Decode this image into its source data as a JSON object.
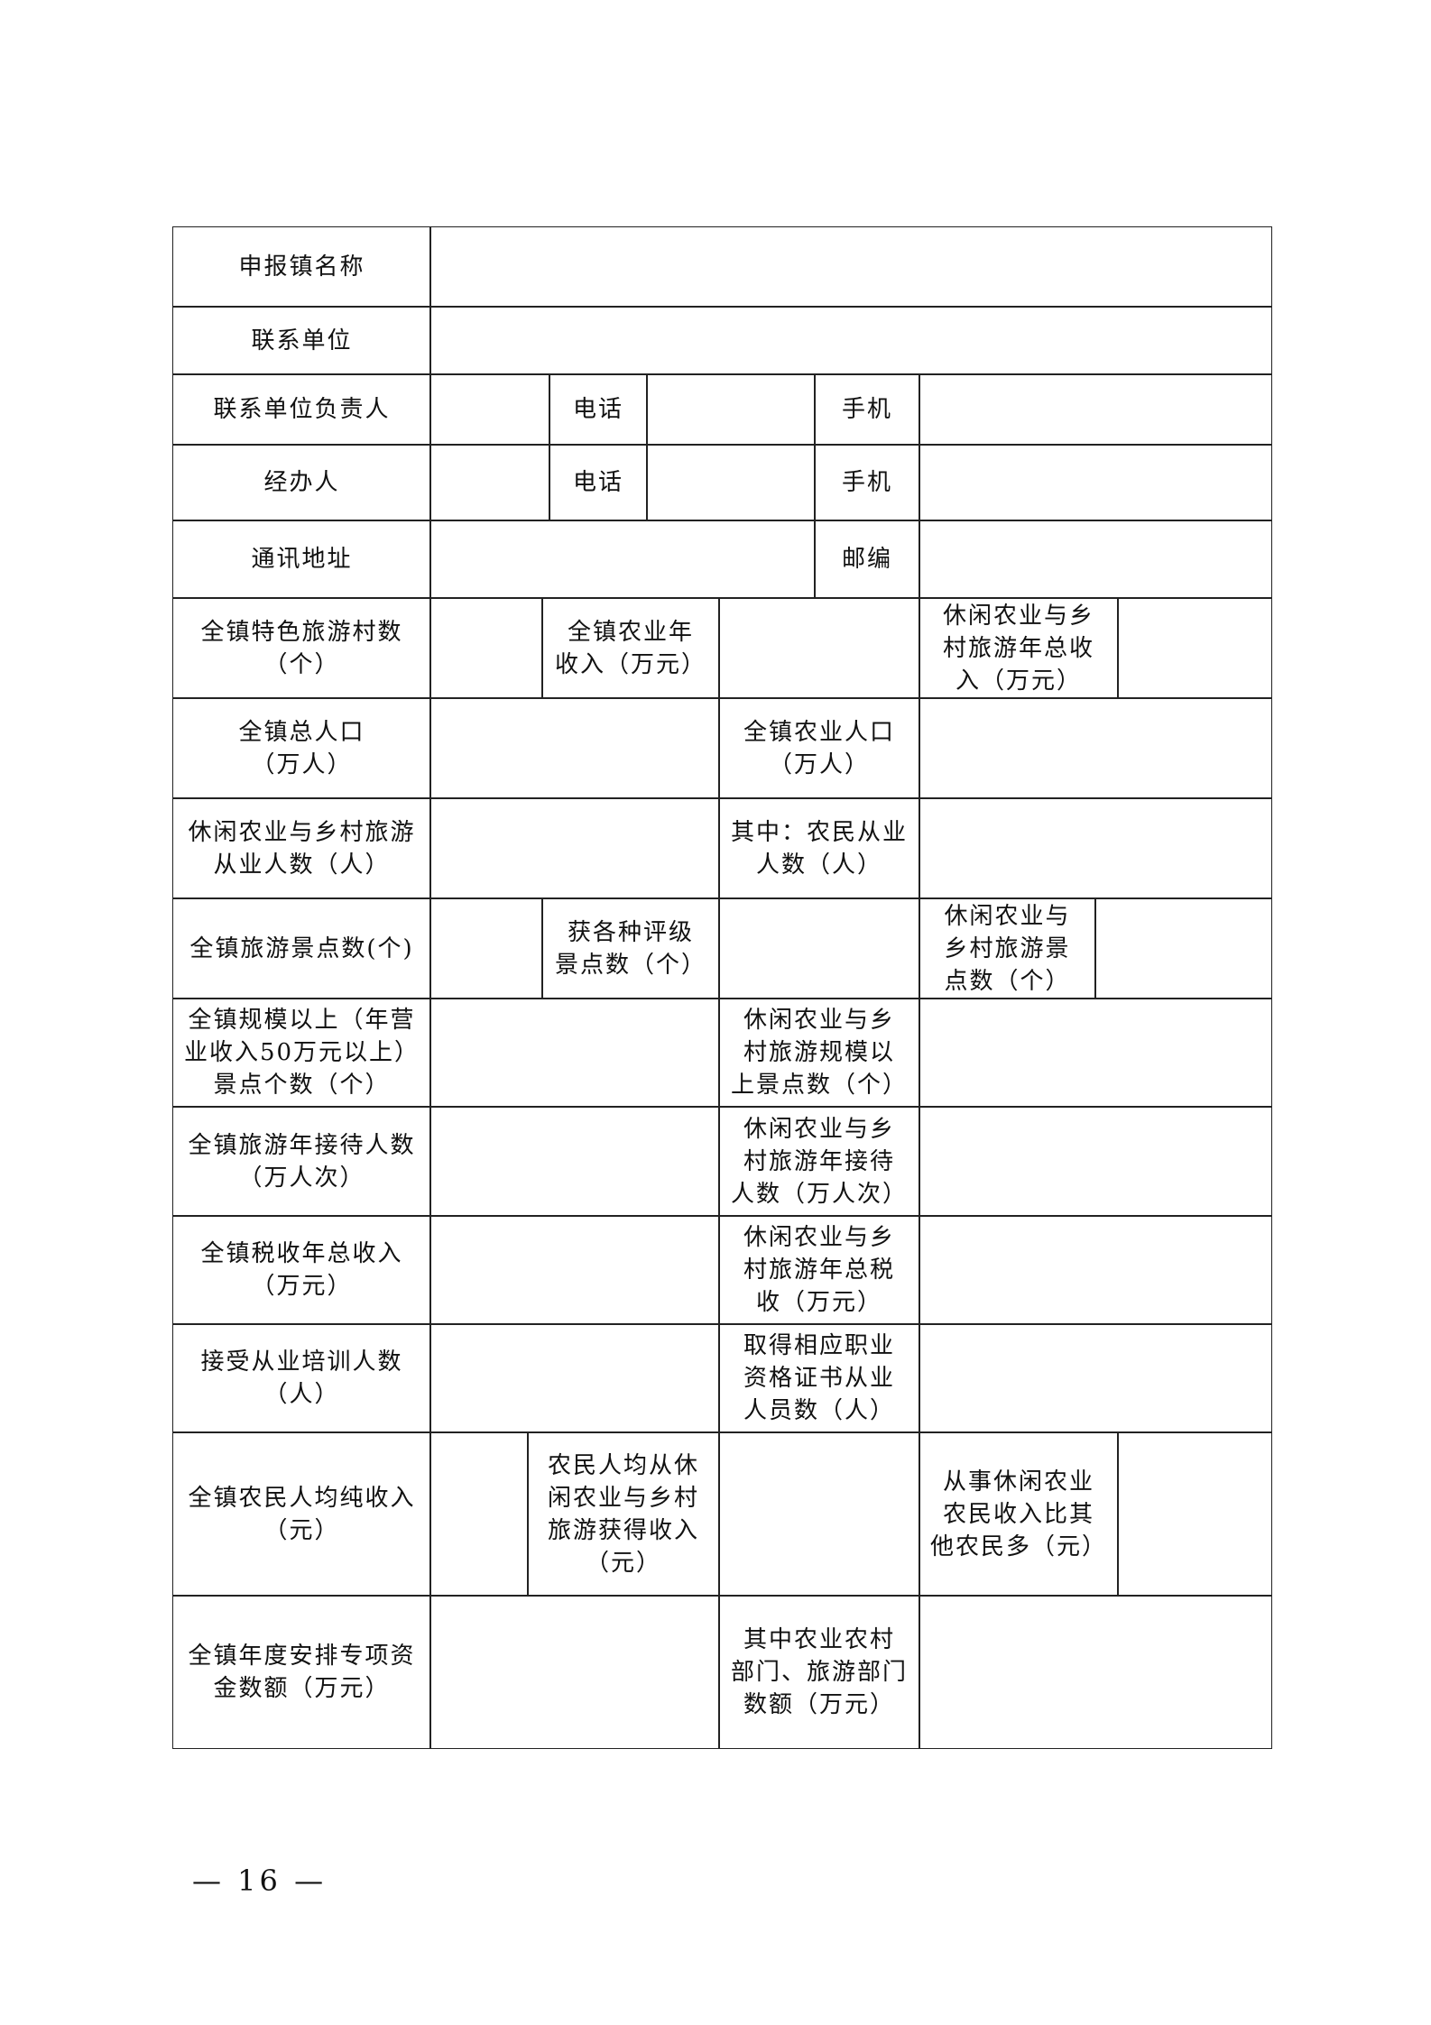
{
  "form": {
    "rows": [
      {
        "cells": [
          {
            "label": "申报镇名称"
          },
          {
            "label": ""
          }
        ]
      },
      {
        "cells": [
          {
            "label": "联系单位"
          },
          {
            "label": ""
          }
        ]
      },
      {
        "cells": [
          {
            "label": "联系单位负责人"
          },
          {
            "label": ""
          },
          {
            "label": "电话"
          },
          {
            "label": ""
          },
          {
            "label": "手机"
          },
          {
            "label": ""
          }
        ]
      },
      {
        "cells": [
          {
            "label": "经办人"
          },
          {
            "label": ""
          },
          {
            "label": "电话"
          },
          {
            "label": ""
          },
          {
            "label": "手机"
          },
          {
            "label": ""
          }
        ]
      },
      {
        "cells": [
          {
            "label": "通讯地址"
          },
          {
            "label": ""
          },
          {
            "label": "邮编"
          },
          {
            "label": ""
          }
        ]
      },
      {
        "cells": [
          {
            "label": "全镇特色旅游村数\n（个）"
          },
          {
            "label": ""
          },
          {
            "label": "全镇农业年\n收入（万元）"
          },
          {
            "label": ""
          },
          {
            "label": "休闲农业与乡\n村旅游年总收\n入（万元）"
          },
          {
            "label": ""
          }
        ]
      },
      {
        "cells": [
          {
            "label": "全镇总人口\n（万人）"
          },
          {
            "label": ""
          },
          {
            "label": "全镇农业人口\n（万人）"
          },
          {
            "label": ""
          }
        ]
      },
      {
        "cells": [
          {
            "label": "休闲农业与乡村旅游\n从业人数（人）"
          },
          {
            "label": ""
          },
          {
            "label": "其中：农民从业\n人数（人）"
          },
          {
            "label": ""
          }
        ]
      },
      {
        "cells": [
          {
            "label": "全镇旅游景点数(个)"
          },
          {
            "label": ""
          },
          {
            "label": "获各种评级\n景点数（个）"
          },
          {
            "label": ""
          },
          {
            "label": "休闲农业与\n乡村旅游景\n点数（个）"
          },
          {
            "label": ""
          }
        ]
      },
      {
        "cells": [
          {
            "label": "全镇规模以上（年营\n业收入50万元以上）\n景点个数（个）"
          },
          {
            "label": ""
          },
          {
            "label": "休闲农业与乡\n村旅游规模以\n上景点数（个）"
          },
          {
            "label": ""
          }
        ]
      },
      {
        "cells": [
          {
            "label": "全镇旅游年接待人数\n（万人次）"
          },
          {
            "label": ""
          },
          {
            "label": "休闲农业与乡\n村旅游年接待\n人数（万人次）"
          },
          {
            "label": ""
          }
        ]
      },
      {
        "cells": [
          {
            "label": "全镇税收年总收入\n（万元）"
          },
          {
            "label": ""
          },
          {
            "label": "休闲农业与乡\n村旅游年总税\n收（万元）"
          },
          {
            "label": ""
          }
        ]
      },
      {
        "cells": [
          {
            "label": "接受从业培训人数\n（人）"
          },
          {
            "label": ""
          },
          {
            "label": "取得相应职业\n资格证书从业\n人员数（人）"
          },
          {
            "label": ""
          }
        ]
      },
      {
        "cells": [
          {
            "label": "全镇农民人均纯收入\n（元）"
          },
          {
            "label": ""
          },
          {
            "label": "农民人均从休\n闲农业与乡村\n旅游获得收入\n（元）"
          },
          {
            "label": ""
          },
          {
            "label": "从事休闲农业\n农民收入比其\n他农民多（元）"
          },
          {
            "label": ""
          }
        ]
      },
      {
        "cells": [
          {
            "label": "全镇年度安排专项资\n金数额（万元）"
          },
          {
            "label": ""
          },
          {
            "label": "其中农业农村\n部门、旅游部门\n数额（万元）"
          },
          {
            "label": ""
          }
        ]
      }
    ]
  },
  "footer": {
    "page_number": "— 16 —"
  }
}
